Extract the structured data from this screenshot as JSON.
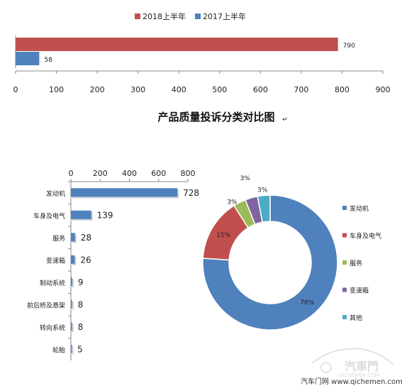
{
  "colors": {
    "red": "#c0504d",
    "blue": "#4f81bd",
    "green": "#9bbb59",
    "purple": "#8064a2",
    "teal": "#4bacc6"
  },
  "chart_data": [
    {
      "type": "bar",
      "orientation": "horizontal",
      "series": [
        {
          "name": "2018上半年",
          "values": [
            790
          ],
          "color": "#c0504d"
        },
        {
          "name": "2017上半年",
          "values": [
            58
          ],
          "color": "#4f81bd"
        }
      ],
      "data_labels": [
        "790",
        "58"
      ],
      "xlim": [
        0,
        900
      ],
      "xticks": [
        "0",
        "100",
        "200",
        "300",
        "400",
        "500",
        "600",
        "700",
        "800",
        "900"
      ],
      "legend_position": "top"
    },
    {
      "type": "bar",
      "orientation": "horizontal",
      "title": "产品质量投诉分类对比图",
      "categories": [
        "发动机",
        "车身及电气",
        "服务",
        "变速箱",
        "制动系统",
        "前后桥及悬架",
        "转向系统",
        "轮胎"
      ],
      "values": [
        728,
        139,
        28,
        26,
        9,
        8,
        8,
        5
      ],
      "data_labels": [
        "728",
        "139",
        "28",
        "26",
        "9",
        "8",
        "8",
        "5"
      ],
      "xlim": [
        0,
        800
      ],
      "xticks": [
        "0",
        "200",
        "400",
        "600",
        "800"
      ],
      "color": "#4f81bd"
    },
    {
      "type": "pie",
      "donut": true,
      "labels": [
        "发动机",
        "车身及电气",
        "服务",
        "变速箱",
        "其他"
      ],
      "values": [
        76,
        15,
        3,
        3,
        3
      ],
      "data_labels": [
        "76%",
        "15%",
        "3%",
        "3%",
        "3%"
      ],
      "colors": [
        "#4f81bd",
        "#c0504d",
        "#9bbb59",
        "#8064a2",
        "#4bacc6"
      ],
      "legend_position": "right"
    }
  ],
  "footer": {
    "watermark_brand": "汽車門",
    "watermark_url": "QICHEMEN.COM",
    "source": "汽车门网 www.qichemen.com"
  }
}
